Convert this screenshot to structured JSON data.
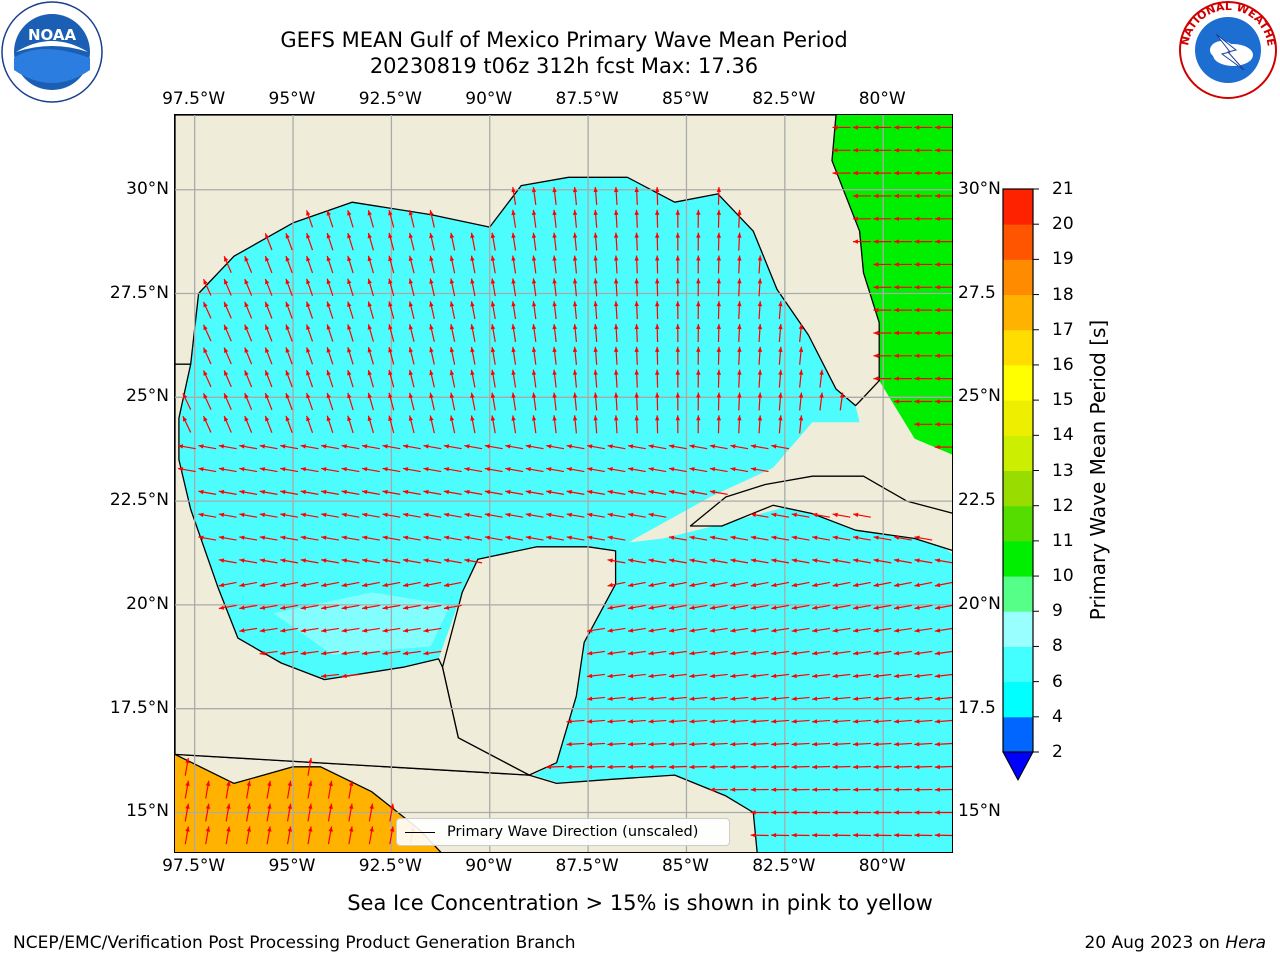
{
  "title": {
    "line1": "GEFS MEAN Gulf of Mexico Primary Wave Mean Period",
    "line2": "20230819 t06z 312h fcst   Max: 17.36"
  },
  "axes": {
    "lon_ticks": [
      "97.5°W",
      "95°W",
      "92.5°W",
      "90°W",
      "87.5°W",
      "85°W",
      "82.5°W",
      "80°W"
    ],
    "lat_ticks_left": [
      "30°N",
      "27.5°N",
      "25°N",
      "22.5°N",
      "20°N",
      "17.5°N",
      "15°N"
    ],
    "lat_ticks_right": [
      "30°N",
      "27.5",
      "25°N",
      "22.5",
      "20°N",
      "17.5",
      "15°N"
    ],
    "lon_values": [
      -97.5,
      -95,
      -92.5,
      -90,
      -87.5,
      -85,
      -82.5,
      -80
    ],
    "lat_values": [
      30,
      27.5,
      25,
      22.5,
      20,
      17.5,
      15
    ],
    "lon_range": [
      -98,
      -78.2
    ],
    "lat_range": [
      14.0,
      31.8
    ],
    "grid": true
  },
  "legend": {
    "label": "Primary Wave Direction (unscaled)"
  },
  "colorbar": {
    "title": "Primary Wave Mean Period [s]",
    "ticks": [
      "21",
      "20",
      "19",
      "18",
      "17",
      "16",
      "15",
      "14",
      "13",
      "12",
      "11",
      "10",
      "9",
      "8",
      "6",
      "4",
      "2"
    ],
    "levels": [
      2,
      4,
      6,
      8,
      9,
      10,
      11,
      12,
      13,
      14,
      15,
      16,
      17,
      18,
      19,
      20,
      21
    ],
    "colors": [
      "#0066ff",
      "#00ffff",
      "#44ffff",
      "#99ffff",
      "#55ff88",
      "#00ee00",
      "#55dd00",
      "#99dd00",
      "#ccee00",
      "#eeee00",
      "#ffff00",
      "#ffdd00",
      "#ffb300",
      "#ff8c00",
      "#ff5500",
      "#ff2200"
    ],
    "under_color": "#0000ff"
  },
  "colors": {
    "land": "#efedd9",
    "coast": "#000000",
    "arrows": "#ff0000",
    "grid": "#aaaaaa"
  },
  "subnote": "Sea Ice Concentration > 15% is shown in pink to yellow",
  "footer": {
    "left": "NCEP/EMC/Verification Post Processing Product Generation Branch",
    "right_prefix": "20 Aug 2023 on ",
    "right_host": "Hera"
  },
  "logos": {
    "noaa": {
      "center_text": "NOAA",
      "ring_text": "NATIONAL OCEANIC AND ATMOSPHERIC ADMINISTRATION · U.S. DEPARTMENT OF COMMERCE"
    },
    "nws": {
      "ring_text": "NATIONAL WEATHER SERVICE"
    }
  }
}
